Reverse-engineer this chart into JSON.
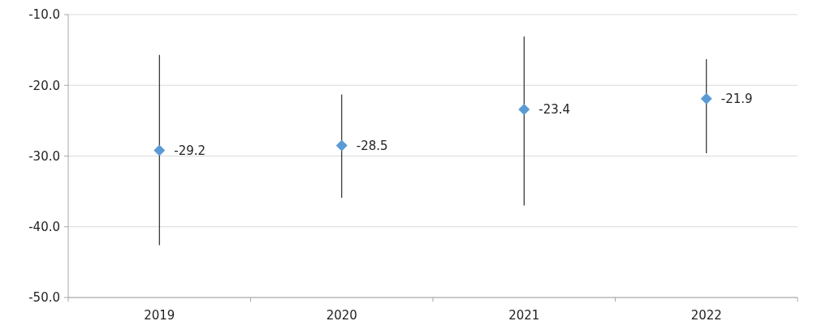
{
  "chart_data": {
    "type": "scatter",
    "categories": [
      "2019",
      "2020",
      "2021",
      "2022"
    ],
    "series": [
      {
        "color": "#5b9bd5",
        "values": [
          -29.2,
          -28.5,
          -23.4,
          -21.9
        ],
        "errors": [
          [
            -42.6,
            -15.7
          ],
          [
            -35.9,
            -21.3
          ],
          [
            -37.0,
            -13.1
          ],
          [
            -29.6,
            -16.3
          ]
        ]
      }
    ],
    "ylim": [
      -50,
      -10
    ],
    "yticks": [
      {
        "value": -50,
        "label": "-50.0"
      },
      {
        "value": -40,
        "label": "-40.0"
      },
      {
        "value": -30,
        "label": "-30.0"
      },
      {
        "value": -20,
        "label": "-20.0"
      },
      {
        "value": -10,
        "label": "-10.0"
      }
    ],
    "grid": "y",
    "marker": "diamond",
    "data_labels": true
  }
}
